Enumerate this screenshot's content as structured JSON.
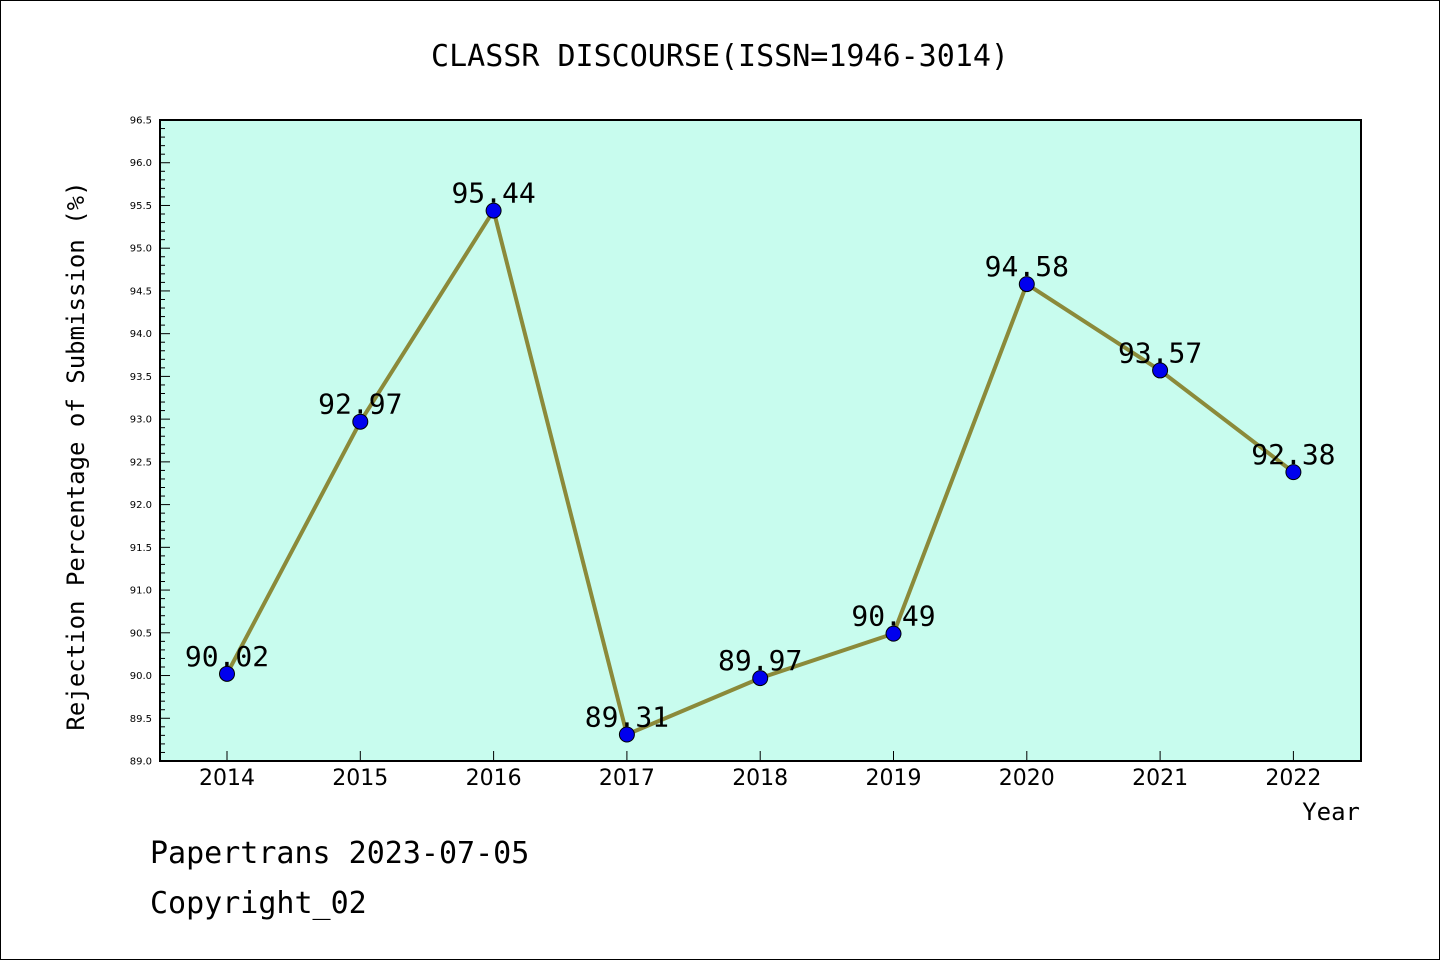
{
  "chart_data": {
    "type": "line",
    "title": "CLASSR DISCOURSE(ISSN=1946-3014)",
    "xlabel": "Year",
    "ylabel": "Rejection Percentage of Submission (%)",
    "categories": [
      "2014",
      "2015",
      "2016",
      "2017",
      "2018",
      "2019",
      "2020",
      "2021",
      "2022"
    ],
    "values": [
      90.02,
      92.97,
      95.44,
      89.31,
      89.97,
      90.49,
      94.58,
      93.57,
      92.38
    ],
    "data_labels": [
      "90.02",
      "92.97",
      "95.44",
      "89.31",
      "89.97",
      "90.49",
      "94.58",
      "93.57",
      "92.38"
    ],
    "ylim": [
      89.0,
      96.5
    ],
    "yticks": [
      "89.0",
      "89.5",
      "90.0",
      "90.5",
      "91.0",
      "91.5",
      "92.0",
      "92.5",
      "93.0",
      "93.5",
      "94.0",
      "94.5",
      "95.0",
      "95.5",
      "96.0",
      "96.5"
    ],
    "grid": false,
    "legend": "none",
    "colors": {
      "plot_background": "#c8fcee",
      "line": "#8b8a3a",
      "marker": "#0000ee"
    }
  },
  "footer": {
    "line1": "Papertrans 2023-07-05",
    "line2": "Copyright_02"
  }
}
